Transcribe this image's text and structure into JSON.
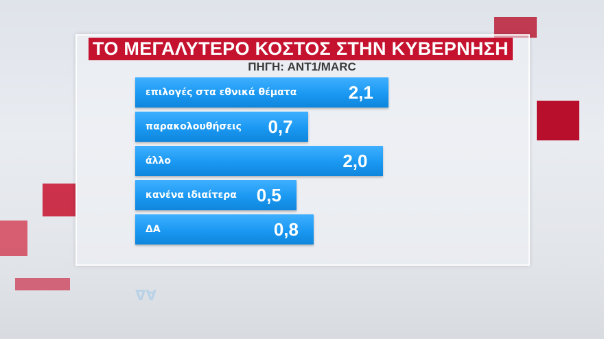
{
  "title": "ΤΟ ΜΕΓΑΛΥΤΕΡΟ ΚΟΣΤΟΣ ΣΤΗΝ ΚΥΒΕΡΝΗΣΗ",
  "source": "ΠΗΓΗ: ANT1/MARC",
  "colors": {
    "title_bg": "#c4122f",
    "bar": "#1a98f2"
  },
  "chart_data": {
    "type": "bar",
    "orientation": "horizontal",
    "title": "ΤΟ ΜΕΓΑΛΥΤΕΡΟ ΚΟΣΤΟΣ ΣΤΗΝ ΚΥΒΕΡΝΗΣΗ",
    "categories": [
      "επιλογές στα εθνικά θέματα",
      "παρακολουθήσεις",
      "άλλο",
      "κανένα ιδιαίτερα",
      "ΔΑ"
    ],
    "values": [
      2.1,
      0.7,
      2.0,
      0.5,
      0.8
    ],
    "value_labels": [
      "2,1",
      "0,7",
      "2,0",
      "0,5",
      "0,8"
    ]
  }
}
